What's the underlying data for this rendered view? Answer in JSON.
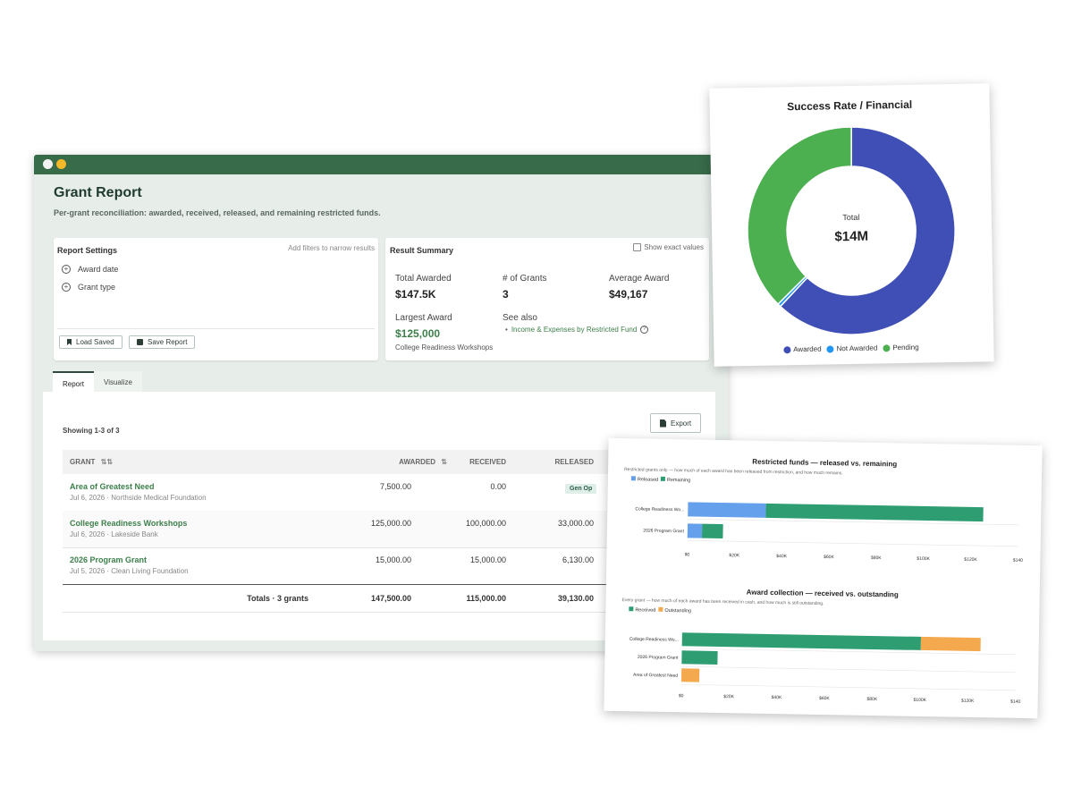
{
  "report": {
    "title": "Grant Report",
    "subtitle": "Per-grant reconciliation: awarded, received, released, and remaining restricted funds.",
    "settings": {
      "title": "Report Settings",
      "hint": "Add filters to narrow results",
      "filters": [
        "Award date",
        "Grant type"
      ],
      "load_label": "Load Saved",
      "save_label": "Save Report"
    },
    "summary": {
      "title": "Result Summary",
      "exact_label": "Show exact values",
      "total_awarded_label": "Total Awarded",
      "total_awarded": "$147.5K",
      "num_grants_label": "# of Grants",
      "num_grants": "3",
      "avg_label": "Average Award",
      "avg": "$49,167",
      "largest_label": "Largest Award",
      "largest": "$125,000",
      "largest_name": "College Readiness Workshops",
      "see_also_label": "See also",
      "see_also_link": "Income & Expenses by Restricted Fund"
    },
    "tabs": [
      "Report",
      "Visualize"
    ],
    "showing": "Showing 1-3 of 3",
    "export_label": "Export",
    "columns": [
      "GRANT",
      "AWARDED",
      "RECEIVED",
      "RELEASED"
    ],
    "rows": [
      {
        "name": "Area of Greatest Need",
        "meta": "Jul 6, 2026 · Northside Medical Foundation",
        "awarded": "7,500.00",
        "received": "0.00",
        "released": "Gen Op"
      },
      {
        "name": "College Readiness Workshops",
        "meta": "Jul 6, 2026 · Lakeside Bank",
        "awarded": "125,000.00",
        "received": "100,000.00",
        "released": "33,000.00"
      },
      {
        "name": "2026 Program Grant",
        "meta": "Jul 5, 2026 · Clean Living Foundation",
        "awarded": "15,000.00",
        "received": "15,000.00",
        "released": "6,130.00"
      }
    ],
    "totals": {
      "label": "Totals · 3 grants",
      "awarded": "147,500.00",
      "received": "115,000.00",
      "released": "39,130.00"
    }
  },
  "donut_chart": {
    "title": "Success Rate / Financial",
    "center_label": "Total",
    "center_value": "$14M",
    "chart_data": {
      "type": "pie",
      "labels": [
        "Awarded",
        "Not Awarded",
        "Pending"
      ],
      "values": [
        62,
        0.5,
        37.5
      ],
      "colors": [
        "#3f4fb5",
        "#2196f3",
        "#4caf50"
      ],
      "legend": "bottom"
    }
  },
  "bar_charts": [
    {
      "title": "Restricted funds — released vs. remaining",
      "subtitle": "Restricted grants only — how much of each award has been released from restriction, and how much remains.",
      "legend": [
        "Released",
        "Remaining"
      ],
      "colors": [
        "#64a0eb",
        "#2e9e72"
      ],
      "chart_data": {
        "type": "bar",
        "orientation": "horizontal",
        "stacked": true,
        "categories": [
          "College Readiness Wo...",
          "2026 Program Grant"
        ],
        "series": [
          {
            "name": "Released",
            "values": [
              33000,
              6130
            ]
          },
          {
            "name": "Remaining",
            "values": [
              92000,
              8870
            ]
          }
        ],
        "xlim": [
          0,
          140000
        ],
        "xticks": [
          "$0",
          "$20K",
          "$40K",
          "$60K",
          "$80K",
          "$100K",
          "$120K",
          "$140"
        ]
      }
    },
    {
      "title": "Award collection — received vs. outstanding",
      "subtitle": "Every grant — how much of each award has been received in cash, and how much is still outstanding.",
      "legend": [
        "Received",
        "Outstanding"
      ],
      "colors": [
        "#2e9e72",
        "#f4a94e"
      ],
      "chart_data": {
        "type": "bar",
        "orientation": "horizontal",
        "stacked": true,
        "categories": [
          "College Readiness Wo...",
          "2026 Program Grant",
          "Area of Greatest Need"
        ],
        "series": [
          {
            "name": "Received",
            "values": [
              100000,
              15000,
              0
            ]
          },
          {
            "name": "Outstanding",
            "values": [
              25000,
              0,
              7500
            ]
          }
        ],
        "xlim": [
          0,
          140000
        ],
        "xticks": [
          "$0",
          "$20K",
          "$40K",
          "$60K",
          "$80K",
          "$100K",
          "$120K",
          "$140"
        ]
      }
    }
  ]
}
